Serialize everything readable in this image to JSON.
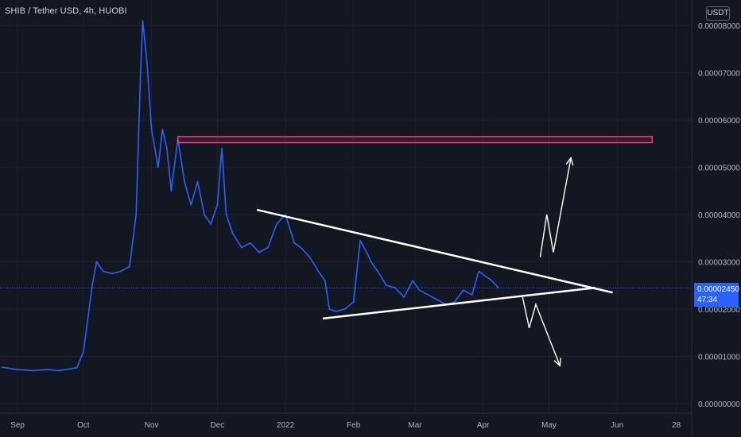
{
  "header": {
    "title": "SHIB / Tether USD, 4h, HUOBI"
  },
  "axis": {
    "currency": "USDT"
  },
  "price_badge": {
    "price": "0.00002450",
    "countdown": "47:34"
  },
  "colors": {
    "background": "#131722",
    "series": "#2962ff",
    "trendline": "#ffffff",
    "resistance_box": "#f23a7a",
    "price_badge": "#2962ff"
  },
  "chart_data": {
    "type": "line",
    "title": "SHIB / Tether USD, 4h, HUOBI",
    "xlabel": "",
    "ylabel": "",
    "x_tick_labels": [
      "Sep",
      "Oct",
      "Nov",
      "Dec",
      "2022",
      "Feb",
      "Mar",
      "Apr",
      "May",
      "Jun",
      "28"
    ],
    "y_tick_labels": [
      "0.00000000",
      "0.00001000",
      "0.00002000",
      "0.00003000",
      "0.00004000",
      "0.00005000",
      "0.00006000",
      "0.00007000",
      "0.00008000"
    ],
    "ylim": [
      0,
      8e-05
    ],
    "grid": true,
    "last_price": 2.45e-05,
    "series": [
      {
        "x": [
          "2021-08-25",
          "2021-09-01",
          "2021-09-08",
          "2021-09-15",
          "2021-09-20",
          "2021-09-28",
          "2021-10-01",
          "2021-10-05",
          "2021-10-07",
          "2021-10-10",
          "2021-10-14",
          "2021-10-18",
          "2021-10-22",
          "2021-10-25",
          "2021-10-27",
          "2021-10-28",
          "2021-10-30",
          "2021-11-01",
          "2021-11-04",
          "2021-11-06",
          "2021-11-08",
          "2021-11-10",
          "2021-11-13",
          "2021-11-16",
          "2021-11-19",
          "2021-11-22",
          "2021-11-25",
          "2021-11-28",
          "2021-12-01",
          "2021-12-03",
          "2021-12-05",
          "2021-12-08",
          "2021-12-12",
          "2021-12-16",
          "2021-12-20",
          "2021-12-24",
          "2021-12-28",
          "2022-01-01",
          "2022-01-05",
          "2022-01-08",
          "2022-01-12",
          "2022-01-16",
          "2022-01-19",
          "2022-01-21",
          "2022-01-24",
          "2022-01-28",
          "2022-02-01",
          "2022-02-04",
          "2022-02-07",
          "2022-02-09",
          "2022-02-12",
          "2022-02-16",
          "2022-02-20",
          "2022-02-24",
          "2022-02-28",
          "2022-03-03",
          "2022-03-07",
          "2022-03-11",
          "2022-03-15",
          "2022-03-19",
          "2022-03-23",
          "2022-03-27",
          "2022-03-30",
          "2022-04-02",
          "2022-04-05",
          "2022-04-08"
        ],
        "y": [
          7.7e-06,
          7.2e-06,
          7e-06,
          7.2e-06,
          7e-06,
          7.6e-06,
          1.1e-05,
          2.5e-05,
          3e-05,
          2.8e-05,
          2.75e-05,
          2.8e-05,
          2.9e-05,
          4e-05,
          7e-05,
          8.1e-05,
          7.2e-05,
          5.8e-05,
          5e-05,
          5.8e-05,
          5.4e-05,
          4.5e-05,
          5.6e-05,
          4.7e-05,
          4.2e-05,
          4.7e-05,
          4e-05,
          3.8e-05,
          4.2e-05,
          5.4e-05,
          4e-05,
          3.6e-05,
          3.3e-05,
          3.4e-05,
          3.2e-05,
          3.3e-05,
          3.8e-05,
          4e-05,
          3.4e-05,
          3.3e-05,
          3.1e-05,
          2.8e-05,
          2.6e-05,
          2e-05,
          1.95e-05,
          2e-05,
          2.15e-05,
          3.45e-05,
          3.2e-05,
          3e-05,
          2.8e-05,
          2.5e-05,
          2.45e-05,
          2.25e-05,
          2.6e-05,
          2.4e-05,
          2.3e-05,
          2.2e-05,
          2.1e-05,
          2.15e-05,
          2.4e-05,
          2.3e-05,
          2.8e-05,
          2.7e-05,
          2.6e-05,
          2.45e-05
        ]
      }
    ],
    "annotations": {
      "resistance_box": {
        "y_top": 5.65e-05,
        "y_bottom": 5.52e-05,
        "x_start": "2021-11-13",
        "x_end": "2022-06-17"
      },
      "upper_trendline": [
        [
          "2021-12-19",
          4.1e-05
        ],
        [
          "2022-05-30",
          2.35e-05
        ]
      ],
      "lower_trendline": [
        [
          "2022-01-18",
          1.8e-05
        ],
        [
          "2022-05-22",
          2.45e-05
        ]
      ],
      "up_arrow": [
        [
          "2022-04-27",
          3.1e-05
        ],
        [
          "2022-04-30",
          4e-05
        ],
        [
          "2022-05-03",
          3.2e-05
        ],
        [
          "2022-05-11",
          5.2e-05
        ]
      ],
      "down_arrow": [
        [
          "2022-04-19",
          2.25e-05
        ],
        [
          "2022-04-22",
          1.6e-05
        ],
        [
          "2022-04-25",
          2.1e-05
        ],
        [
          "2022-05-06",
          8e-06
        ]
      ]
    }
  }
}
